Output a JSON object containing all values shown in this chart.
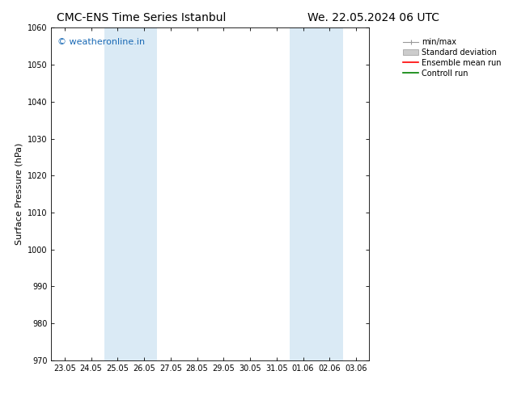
{
  "title_left": "CMC-ENS Time Series Istanbul",
  "title_right": "We. 22.05.2024 06 UTC",
  "ylabel": "Surface Pressure (hPa)",
  "ylim": [
    970,
    1060
  ],
  "yticks": [
    970,
    980,
    990,
    1000,
    1010,
    1020,
    1030,
    1040,
    1050,
    1060
  ],
  "xtick_labels": [
    "23.05",
    "24.05",
    "25.05",
    "26.05",
    "27.05",
    "28.05",
    "29.05",
    "30.05",
    "31.05",
    "01.06",
    "02.06",
    "03.06"
  ],
  "shaded_bands": [
    {
      "xmin": 2,
      "xmax": 4,
      "color": "#daeaf5"
    },
    {
      "xmin": 9,
      "xmax": 11,
      "color": "#daeaf5"
    }
  ],
  "watermark": "© weatheronline.in",
  "watermark_color": "#1a6ab5",
  "legend_entries": [
    {
      "label": "min/max",
      "color": "#aaaaaa",
      "style": "minmax"
    },
    {
      "label": "Standard deviation",
      "color": "#cccccc",
      "style": "band"
    },
    {
      "label": "Ensemble mean run",
      "color": "#ff0000",
      "style": "line"
    },
    {
      "label": "Controll run",
      "color": "#008000",
      "style": "line"
    }
  ],
  "background_color": "#ffffff",
  "plot_bg_color": "#ffffff",
  "font_family": "DejaVu Sans",
  "title_fontsize": 10,
  "tick_fontsize": 7,
  "ylabel_fontsize": 8,
  "watermark_fontsize": 8,
  "legend_fontsize": 7
}
